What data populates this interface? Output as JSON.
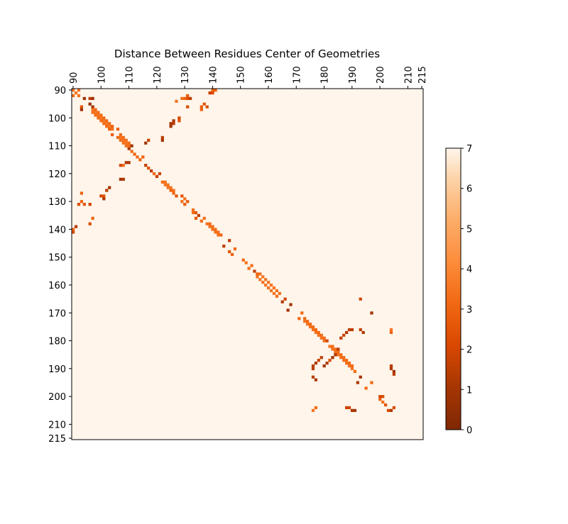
{
  "chart_data": {
    "type": "heatmap",
    "title": "Distance Between Residues Center of Geometries",
    "xlabel": "",
    "ylabel": "",
    "x_range": [
      90,
      215
    ],
    "y_range": [
      90,
      215
    ],
    "x_ticks": [
      "90",
      "100",
      "110",
      "120",
      "130",
      "140",
      "150",
      "160",
      "170",
      "180",
      "190",
      "200",
      "210",
      "215"
    ],
    "y_ticks": [
      "90",
      "100",
      "110",
      "120",
      "130",
      "140",
      "150",
      "160",
      "170",
      "180",
      "190",
      "200",
      "210",
      "215"
    ],
    "x_axis_position": "top",
    "colormap": "Oranges_r",
    "vmin": 0,
    "vmax": 7,
    "background_value": 7,
    "grid": false,
    "colorbar": {
      "position": "right",
      "ticks": [
        "0",
        "1",
        "2",
        "3",
        "4",
        "5",
        "6",
        "7"
      ],
      "tick_values": [
        0,
        1,
        2,
        3,
        4,
        5,
        6,
        7
      ]
    },
    "cells": [
      [
        90,
        90,
        3.5
      ],
      [
        91,
        91,
        3.5
      ],
      [
        92,
        92,
        3.4
      ],
      [
        90,
        92,
        3.3
      ],
      [
        92,
        90,
        3.3
      ],
      [
        90,
        140,
        3.0
      ],
      [
        90,
        141,
        2.2
      ],
      [
        91,
        139,
        1.4
      ],
      [
        140,
        90,
        3.0
      ],
      [
        141,
        90,
        2.2
      ],
      [
        139,
        91,
        1.4
      ],
      [
        93,
        96,
        2.5
      ],
      [
        93,
        97,
        0.8
      ],
      [
        94,
        93,
        0.8
      ],
      [
        96,
        93,
        1.5
      ],
      [
        97,
        93,
        0.8
      ],
      [
        96,
        95,
        0.6
      ],
      [
        97,
        96,
        1.0
      ],
      [
        97,
        97,
        3.6
      ],
      [
        98,
        98,
        3.6
      ],
      [
        99,
        99,
        3.6
      ],
      [
        100,
        100,
        3.6
      ],
      [
        101,
        101,
        3.6
      ],
      [
        102,
        102,
        3.6
      ],
      [
        103,
        103,
        3.6
      ],
      [
        104,
        104,
        3.5
      ],
      [
        98,
        97,
        3.2
      ],
      [
        99,
        98,
        3.2
      ],
      [
        100,
        99,
        3.2
      ],
      [
        101,
        100,
        3.2
      ],
      [
        102,
        101,
        3.2
      ],
      [
        103,
        102,
        3.2
      ],
      [
        104,
        103,
        3.0
      ],
      [
        97,
        98,
        3.2
      ],
      [
        98,
        99,
        3.2
      ],
      [
        99,
        100,
        3.2
      ],
      [
        100,
        101,
        3.2
      ],
      [
        101,
        102,
        3.2
      ],
      [
        102,
        103,
        3.2
      ],
      [
        103,
        104,
        3.0
      ],
      [
        104,
        106,
        2.8
      ],
      [
        106,
        104,
        2.8
      ],
      [
        104,
        104,
        3.4
      ],
      [
        106,
        107,
        3.2
      ],
      [
        107,
        108,
        3.3
      ],
      [
        108,
        109,
        3.3
      ],
      [
        109,
        110,
        3.2
      ],
      [
        110,
        111,
        1.2
      ],
      [
        107,
        106,
        3.2
      ],
      [
        108,
        107,
        3.3
      ],
      [
        109,
        108,
        3.3
      ],
      [
        110,
        109,
        3.2
      ],
      [
        107,
        107,
        3.5
      ],
      [
        108,
        108,
        3.5
      ],
      [
        109,
        109,
        3.5
      ],
      [
        110,
        110,
        3.3
      ],
      [
        111,
        110,
        1.0
      ],
      [
        111,
        112,
        3.2
      ],
      [
        112,
        113,
        3.0
      ],
      [
        113,
        114,
        3.2
      ],
      [
        114,
        115,
        3.0
      ],
      [
        115,
        114,
        3.0
      ],
      [
        116,
        117,
        1.5
      ],
      [
        117,
        118,
        2.5
      ],
      [
        118,
        119,
        1.5
      ],
      [
        119,
        120,
        3.2
      ],
      [
        120,
        121,
        1.8
      ],
      [
        121,
        120,
        1.8
      ],
      [
        122,
        123,
        3.2
      ],
      [
        123,
        124,
        3.5
      ],
      [
        124,
        125,
        3.5
      ],
      [
        125,
        126,
        3.0
      ],
      [
        126,
        127,
        3.0
      ],
      [
        127,
        128,
        2.5
      ],
      [
        123,
        123,
        3.4
      ],
      [
        124,
        124,
        3.5
      ],
      [
        125,
        125,
        3.5
      ],
      [
        126,
        126,
        3.3
      ],
      [
        129,
        128,
        2.5
      ],
      [
        130,
        129,
        3.4
      ],
      [
        129,
        130,
        3.4
      ],
      [
        131,
        130,
        2.8
      ],
      [
        130,
        131,
        2.8
      ],
      [
        133,
        133,
        3.3
      ],
      [
        133,
        134,
        3.3
      ],
      [
        134,
        134,
        2.5
      ],
      [
        135,
        135,
        1.6
      ],
      [
        134,
        136,
        2.5
      ],
      [
        136,
        137,
        3.2
      ],
      [
        137,
        136,
        3.3
      ],
      [
        138,
        138,
        3.4
      ],
      [
        139,
        139,
        3.4
      ],
      [
        140,
        140,
        3.4
      ],
      [
        141,
        141,
        3.4
      ],
      [
        142,
        142,
        3.4
      ],
      [
        139,
        138,
        3.3
      ],
      [
        140,
        139,
        3.3
      ],
      [
        141,
        140,
        3.3
      ],
      [
        142,
        141,
        3.3
      ],
      [
        143,
        142,
        3.0
      ],
      [
        144,
        146,
        1.5
      ],
      [
        146,
        148,
        2.5
      ],
      [
        147,
        149,
        3.0
      ],
      [
        148,
        147,
        3.2
      ],
      [
        146,
        144,
        1.5
      ],
      [
        151,
        151,
        3.2
      ],
      [
        152,
        152,
        3.5
      ],
      [
        153,
        154,
        3.3
      ],
      [
        154,
        153,
        3.3
      ],
      [
        155,
        155,
        1.5
      ],
      [
        156,
        156,
        3.0
      ],
      [
        156,
        157,
        3.4
      ],
      [
        157,
        158,
        3.5
      ],
      [
        158,
        159,
        3.5
      ],
      [
        159,
        160,
        3.5
      ],
      [
        160,
        161,
        3.5
      ],
      [
        161,
        162,
        3.5
      ],
      [
        162,
        163,
        3.5
      ],
      [
        163,
        164,
        3.4
      ],
      [
        157,
        156,
        3.4
      ],
      [
        158,
        157,
        3.5
      ],
      [
        159,
        158,
        3.5
      ],
      [
        160,
        159,
        3.5
      ],
      [
        161,
        160,
        3.5
      ],
      [
        162,
        161,
        3.5
      ],
      [
        163,
        162,
        3.5
      ],
      [
        164,
        163,
        3.4
      ],
      [
        165,
        166,
        1.3
      ],
      [
        166,
        165,
        2.0
      ],
      [
        167,
        169,
        1.0
      ],
      [
        168,
        167,
        1.0
      ],
      [
        171,
        172,
        3.2
      ],
      [
        172,
        170,
        3.2
      ],
      [
        173,
        173,
        3.4
      ],
      [
        174,
        174,
        3.4
      ],
      [
        175,
        175,
        3.4
      ],
      [
        176,
        176,
        3.4
      ],
      [
        177,
        177,
        3.4
      ],
      [
        178,
        178,
        3.4
      ],
      [
        179,
        179,
        3.4
      ],
      [
        180,
        180,
        3.4
      ],
      [
        173,
        172,
        3.2
      ],
      [
        174,
        173,
        3.2
      ],
      [
        175,
        174,
        3.2
      ],
      [
        176,
        175,
        3.2
      ],
      [
        177,
        176,
        3.2
      ],
      [
        178,
        177,
        3.2
      ],
      [
        179,
        178,
        3.2
      ],
      [
        180,
        179,
        3.2
      ],
      [
        181,
        180,
        2.0
      ],
      [
        182,
        182,
        3.4
      ],
      [
        183,
        183,
        3.4
      ],
      [
        184,
        184,
        3.4
      ],
      [
        185,
        185,
        3.4
      ],
      [
        186,
        186,
        3.4
      ],
      [
        187,
        187,
        3.4
      ],
      [
        188,
        188,
        3.4
      ],
      [
        189,
        189,
        3.4
      ],
      [
        190,
        190,
        3.4
      ],
      [
        191,
        191,
        3.2
      ],
      [
        183,
        182,
        3.2
      ],
      [
        184,
        183,
        3.2
      ],
      [
        185,
        184,
        3.2
      ],
      [
        186,
        185,
        3.2
      ],
      [
        187,
        186,
        3.2
      ],
      [
        188,
        187,
        3.2
      ],
      [
        189,
        188,
        3.2
      ],
      [
        190,
        189,
        3.2
      ],
      [
        193,
        165,
        2.0
      ],
      [
        197,
        170,
        1.0
      ],
      [
        204,
        176,
        3.5
      ],
      [
        204,
        177,
        3.0
      ],
      [
        186,
        179,
        1.5
      ],
      [
        187,
        178,
        1.8
      ],
      [
        189,
        176,
        1.5
      ],
      [
        190,
        176,
        1.5
      ],
      [
        188,
        177,
        1.2
      ],
      [
        179,
        186,
        1.5
      ],
      [
        178,
        187,
        1.8
      ],
      [
        176,
        189,
        1.5
      ],
      [
        176,
        190,
        1.5
      ],
      [
        177,
        188,
        1.2
      ],
      [
        185,
        183,
        1.5
      ],
      [
        184,
        185,
        1.2
      ],
      [
        183,
        186,
        1.0
      ],
      [
        182,
        187,
        2.2
      ],
      [
        181,
        188,
        1.2
      ],
      [
        180,
        189,
        1.0
      ],
      [
        176,
        193,
        1.5
      ],
      [
        177,
        194,
        1.2
      ],
      [
        193,
        176,
        1.5
      ],
      [
        194,
        177,
        1.2
      ],
      [
        192,
        195,
        1.2
      ],
      [
        193,
        193,
        1.0
      ],
      [
        195,
        197,
        3.2
      ],
      [
        197,
        195,
        3.2
      ],
      [
        200,
        201,
        3.0
      ],
      [
        201,
        202,
        3.3
      ],
      [
        202,
        203,
        2.5
      ],
      [
        200,
        200,
        2.0
      ],
      [
        201,
        200,
        2.2
      ],
      [
        188,
        204,
        1.8
      ],
      [
        189,
        204,
        2.0
      ],
      [
        190,
        205,
        1.2
      ],
      [
        191,
        205,
        1.0
      ],
      [
        203,
        205,
        2.2
      ],
      [
        205,
        204,
        2.2
      ],
      [
        204,
        189,
        1.5
      ],
      [
        204,
        190,
        1.3
      ],
      [
        205,
        191,
        1.0
      ],
      [
        205,
        192,
        1.5
      ],
      [
        204,
        205,
        1.3
      ],
      [
        176,
        205,
        3.5
      ],
      [
        177,
        204,
        3.3
      ],
      [
        127,
        94,
        3.5
      ],
      [
        129,
        93,
        3.3
      ],
      [
        131,
        92,
        2.8
      ],
      [
        132,
        93,
        1.5
      ],
      [
        125,
        102,
        1.0
      ],
      [
        126,
        101,
        1.2
      ],
      [
        122,
        107,
        1.5
      ],
      [
        122,
        108,
        1.0
      ],
      [
        108,
        122,
        1.3
      ],
      [
        107,
        122,
        1.0
      ],
      [
        117,
        108,
        1.8
      ],
      [
        116,
        109,
        1.0
      ],
      [
        108,
        117,
        3.3
      ],
      [
        107,
        117,
        2.0
      ],
      [
        109,
        116,
        1.2
      ],
      [
        110,
        116,
        1.2
      ],
      [
        94,
        131,
        2.5
      ],
      [
        93,
        130,
        3.0
      ],
      [
        92,
        131,
        2.2
      ],
      [
        93,
        127,
        3.0
      ],
      [
        96,
        138,
        2.2
      ],
      [
        97,
        136,
        3.0
      ],
      [
        96,
        131,
        1.8
      ],
      [
        131,
        96,
        2.2
      ],
      [
        131,
        93,
        2.2
      ],
      [
        130,
        93,
        3.0
      ],
      [
        136,
        97,
        3.0
      ],
      [
        138,
        96,
        2.2
      ],
      [
        100,
        128,
        2.0
      ],
      [
        101,
        128,
        2.5
      ],
      [
        102,
        126,
        1.5
      ],
      [
        103,
        125,
        1.0
      ],
      [
        101,
        129,
        1.2
      ],
      [
        128,
        100,
        2.0
      ],
      [
        128,
        101,
        2.5
      ],
      [
        126,
        102,
        1.5
      ],
      [
        125,
        103,
        1.0
      ],
      [
        136,
        96,
        2.8
      ],
      [
        137,
        95,
        2.5
      ],
      [
        139,
        91,
        1.8
      ],
      [
        140,
        91,
        2.2
      ],
      [
        141,
        90,
        3.0
      ]
    ]
  }
}
